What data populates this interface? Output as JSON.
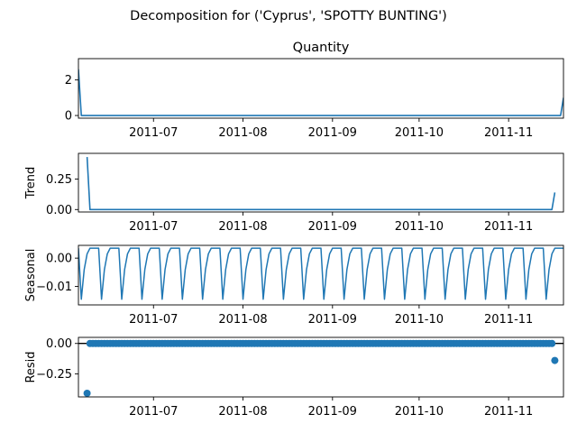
{
  "chart_data": {
    "type": "line",
    "suptitle": "Decomposition for ('Cyprus', 'SPOTTY BUNTING')",
    "x_tick_labels": [
      "2011-07",
      "2011-08",
      "2011-09",
      "2011-10",
      "2011-11"
    ],
    "x_tick_dates": [
      "2011-07-01",
      "2011-08-01",
      "2011-09-01",
      "2011-10-01",
      "2011-11-01"
    ],
    "xlim": [
      "2011-06-05",
      "2011-11-20"
    ],
    "series_color": "#1f77b4",
    "panels": [
      {
        "key": "observed",
        "title": "Quantity",
        "ylabel": "",
        "kind": "line",
        "ylim": [
          -0.15,
          3.2
        ],
        "yticks": [
          0,
          2
        ],
        "ytick_labels": [
          "0",
          "2"
        ],
        "points": [
          [
            "2011-06-05",
            2.6
          ],
          [
            "2011-06-06",
            0
          ],
          [
            "2011-11-19",
            0
          ],
          [
            "2011-11-20",
            1.0
          ]
        ]
      },
      {
        "key": "trend",
        "title": "",
        "ylabel": "Trend",
        "kind": "line",
        "ylim": [
          -0.02,
          0.46
        ],
        "yticks": [
          0,
          0.25
        ],
        "ytick_labels": [
          "0.00",
          "0.25"
        ],
        "points": [
          [
            "2011-06-08",
            0.43
          ],
          [
            "2011-06-09",
            0
          ],
          [
            "2011-11-16",
            0
          ],
          [
            "2011-11-17",
            0.14
          ]
        ]
      },
      {
        "key": "seasonal",
        "title": "",
        "ylabel": "Seasonal",
        "kind": "seasonal",
        "ylim": [
          -0.0165,
          0.0045
        ],
        "yticks": [
          0,
          -0.01
        ],
        "ytick_labels": [
          "0.00",
          "−0.01"
        ],
        "period_days": 7,
        "pattern": [
          0.0035,
          0.0035,
          0.0035,
          0.0035,
          -0.0145,
          -0.004,
          0.0015
        ]
      },
      {
        "key": "resid",
        "title": "",
        "ylabel": "Resid",
        "kind": "scatter",
        "ylim": [
          -0.44,
          0.05
        ],
        "yticks": [
          0,
          -0.25
        ],
        "ytick_labels": [
          "0.00",
          "−0.25"
        ],
        "zero_line": true,
        "outliers": [
          [
            "2011-06-08",
            -0.41
          ],
          [
            "2011-11-17",
            -0.14
          ]
        ],
        "dense_range": [
          "2011-06-09",
          "2011-11-16"
        ],
        "dense_value": 0
      }
    ]
  }
}
